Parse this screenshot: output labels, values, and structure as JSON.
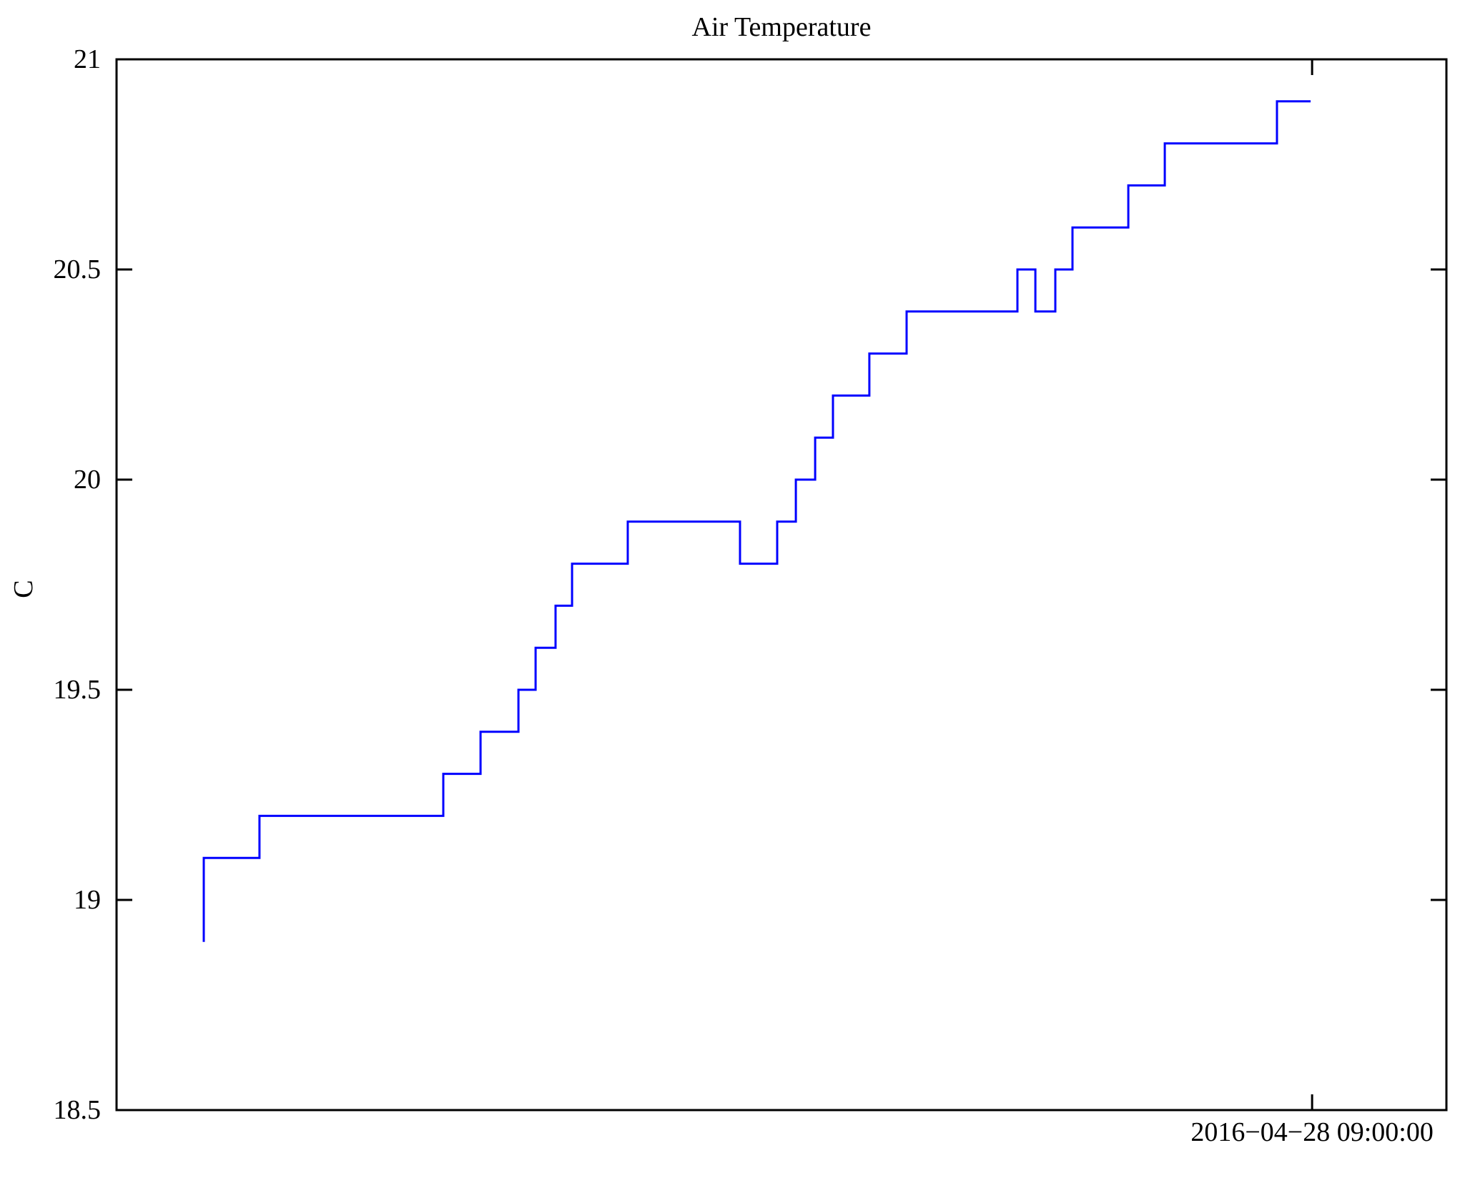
{
  "figure": {
    "background_color": "#FFFFFF",
    "axis_color": "#000000"
  },
  "chart_data": {
    "type": "line",
    "line_style": "step",
    "title": "Air Temperature",
    "ylabel": "C",
    "xlabel": "",
    "ylim": [
      18.5,
      21
    ],
    "yticks": [
      21,
      20.5,
      20,
      19.5,
      19,
      18.5
    ],
    "ytick_labels": [
      "21",
      "20.5",
      "20",
      "19.5",
      "19",
      "18.5"
    ],
    "xticks": [
      {
        "axis_fraction": 0.899,
        "label": "2016−04−28 09:00:00"
      }
    ],
    "grid": false,
    "legend": "none",
    "line_color": "#0000FF",
    "series": [
      {
        "name": "Air Temperature",
        "units": "C",
        "points_format": "[x_axis_fraction, temperature_C]",
        "points": [
          [
            0.0656,
            18.9
          ],
          [
            0.0656,
            19.1
          ],
          [
            0.1075,
            19.1
          ],
          [
            0.1075,
            19.2
          ],
          [
            0.2457,
            19.2
          ],
          [
            0.2457,
            19.3
          ],
          [
            0.2737,
            19.3
          ],
          [
            0.2737,
            19.4
          ],
          [
            0.3022,
            19.4
          ],
          [
            0.3022,
            19.5
          ],
          [
            0.3151,
            19.5
          ],
          [
            0.3151,
            19.6
          ],
          [
            0.3301,
            19.6
          ],
          [
            0.3301,
            19.7
          ],
          [
            0.3425,
            19.7
          ],
          [
            0.3425,
            19.8
          ],
          [
            0.3844,
            19.8
          ],
          [
            0.3844,
            19.9
          ],
          [
            0.4688,
            19.9
          ],
          [
            0.4688,
            19.8
          ],
          [
            0.4968,
            19.8
          ],
          [
            0.4968,
            19.9
          ],
          [
            0.5108,
            19.9
          ],
          [
            0.5108,
            20.0
          ],
          [
            0.5253,
            20.0
          ],
          [
            0.5253,
            20.1
          ],
          [
            0.5387,
            20.1
          ],
          [
            0.5387,
            20.2
          ],
          [
            0.5661,
            20.2
          ],
          [
            0.5661,
            20.3
          ],
          [
            0.5941,
            20.3
          ],
          [
            0.5941,
            20.4
          ],
          [
            0.6774,
            20.4
          ],
          [
            0.6774,
            20.5
          ],
          [
            0.6909,
            20.5
          ],
          [
            0.6909,
            20.4
          ],
          [
            0.7059,
            20.4
          ],
          [
            0.7059,
            20.5
          ],
          [
            0.7188,
            20.5
          ],
          [
            0.7188,
            20.6
          ],
          [
            0.7608,
            20.6
          ],
          [
            0.7608,
            20.7
          ],
          [
            0.7882,
            20.7
          ],
          [
            0.7882,
            20.8
          ],
          [
            0.8726,
            20.8
          ],
          [
            0.8726,
            20.9
          ],
          [
            0.8979,
            20.9
          ]
        ]
      }
    ]
  }
}
